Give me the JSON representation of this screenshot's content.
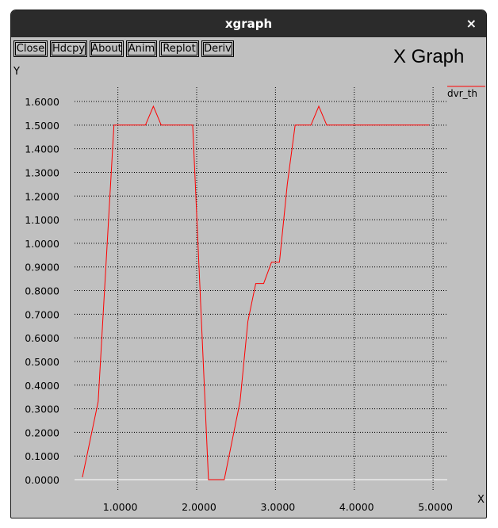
{
  "window": {
    "title": "xgraph",
    "close_glyph": "×"
  },
  "toolbar": {
    "buttons": [
      {
        "label": "Close"
      },
      {
        "label": "Hdcpy"
      },
      {
        "label": "About"
      },
      {
        "label": "Anim"
      },
      {
        "label": "Replot"
      },
      {
        "label": "Deriv"
      }
    ]
  },
  "colors": {
    "series": "#ff0000",
    "background": "#c0c0c0",
    "grid": "#000000",
    "zero_line": "#ffffff"
  },
  "chart_data": {
    "type": "line",
    "title": "X Graph",
    "xlabel": "X",
    "ylabel": "Y",
    "xlim": [
      0.45,
      5.18
    ],
    "ylim": [
      0.0,
      1.6
    ],
    "grid": true,
    "legend_position": "top-right",
    "x_ticks": [
      {
        "value": 1.0,
        "label": "1.0000"
      },
      {
        "value": 2.0,
        "label": "2.0000"
      },
      {
        "value": 3.0,
        "label": "3.0000"
      },
      {
        "value": 4.0,
        "label": "4.0000"
      },
      {
        "value": 5.0,
        "label": "5.0000"
      }
    ],
    "y_ticks": [
      {
        "value": 0.0,
        "label": "0.0000"
      },
      {
        "value": 0.1,
        "label": "0.1000"
      },
      {
        "value": 0.2,
        "label": "0.2000"
      },
      {
        "value": 0.3,
        "label": "0.3000"
      },
      {
        "value": 0.4,
        "label": "0.4000"
      },
      {
        "value": 0.5,
        "label": "0.5000"
      },
      {
        "value": 0.6,
        "label": "0.6000"
      },
      {
        "value": 0.7,
        "label": "0.7000"
      },
      {
        "value": 0.8,
        "label": "0.8000"
      },
      {
        "value": 0.9,
        "label": "0.9000"
      },
      {
        "value": 1.0,
        "label": "1.0000"
      },
      {
        "value": 1.1,
        "label": "1.1000"
      },
      {
        "value": 1.2,
        "label": "1.2000"
      },
      {
        "value": 1.3,
        "label": "1.3000"
      },
      {
        "value": 1.4,
        "label": "1.4000"
      },
      {
        "value": 1.5,
        "label": "1.5000"
      },
      {
        "value": 1.6,
        "label": "1.6000"
      }
    ],
    "series": [
      {
        "name": "dvr_th",
        "color": "#ff0000",
        "points": [
          [
            0.55,
            0.01
          ],
          [
            0.75,
            0.33
          ],
          [
            0.95,
            1.5
          ],
          [
            1.35,
            1.5
          ],
          [
            1.45,
            1.58
          ],
          [
            1.55,
            1.5
          ],
          [
            1.95,
            1.5
          ],
          [
            2.15,
            0.0
          ],
          [
            2.35,
            0.0
          ],
          [
            2.55,
            0.33
          ],
          [
            2.65,
            0.67
          ],
          [
            2.75,
            0.83
          ],
          [
            2.85,
            0.83
          ],
          [
            2.95,
            0.92
          ],
          [
            3.05,
            0.92
          ],
          [
            3.15,
            1.25
          ],
          [
            3.25,
            1.5
          ],
          [
            3.45,
            1.5
          ],
          [
            3.55,
            1.58
          ],
          [
            3.65,
            1.5
          ],
          [
            4.95,
            1.5
          ]
        ]
      }
    ]
  }
}
